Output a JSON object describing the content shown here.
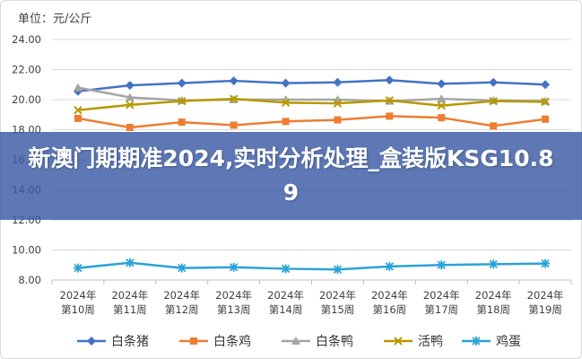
{
  "unit_label": "单位：元/公斤",
  "overlay_title": "新澳门期期准2024,实时分析处理_盒装版KSG10.89",
  "chart_data": {
    "type": "line",
    "title": "",
    "xlabel": "",
    "ylabel": "",
    "categories": [
      "2024年\n第10周",
      "2024年\n第11周",
      "2024年\n第12周",
      "2024年\n第13周",
      "2024年\n第14周",
      "2024年\n第15周",
      "2024年\n第16周",
      "2024年\n第17周",
      "2024年\n第18周",
      "2024年\n第19周"
    ],
    "ylim": [
      8.0,
      24.0
    ],
    "yticks": [
      "8.00",
      "10.00",
      "12.00",
      "14.00",
      "16.00",
      "18.00",
      "20.00",
      "22.00",
      "24.00"
    ],
    "grid": true,
    "legend_position": "bottom",
    "series": [
      {
        "name": "白条猪",
        "color": "#4472c4",
        "marker": "diamond",
        "values": [
          20.55,
          20.95,
          21.1,
          21.25,
          21.1,
          21.15,
          21.3,
          21.05,
          21.15,
          21.0
        ]
      },
      {
        "name": "白条鸡",
        "color": "#ed7d31",
        "marker": "square",
        "values": [
          18.75,
          18.15,
          18.5,
          18.3,
          18.55,
          18.65,
          18.9,
          18.8,
          18.25,
          18.7
        ]
      },
      {
        "name": "白条鸭",
        "color": "#a5a5a5",
        "marker": "triangle",
        "values": [
          20.8,
          20.15,
          19.95,
          20.0,
          20.0,
          20.0,
          19.9,
          20.05,
          19.95,
          19.9
        ]
      },
      {
        "name": "活鸭",
        "color": "#b59a00",
        "marker": "x",
        "values": [
          19.3,
          19.65,
          19.9,
          20.05,
          19.8,
          19.75,
          19.95,
          19.6,
          19.9,
          19.85
        ]
      },
      {
        "name": "鸡蛋",
        "color": "#2aa3d8",
        "marker": "asterisk",
        "values": [
          8.8,
          9.15,
          8.8,
          8.85,
          8.75,
          8.7,
          8.9,
          9.0,
          9.05,
          9.1
        ]
      }
    ]
  }
}
